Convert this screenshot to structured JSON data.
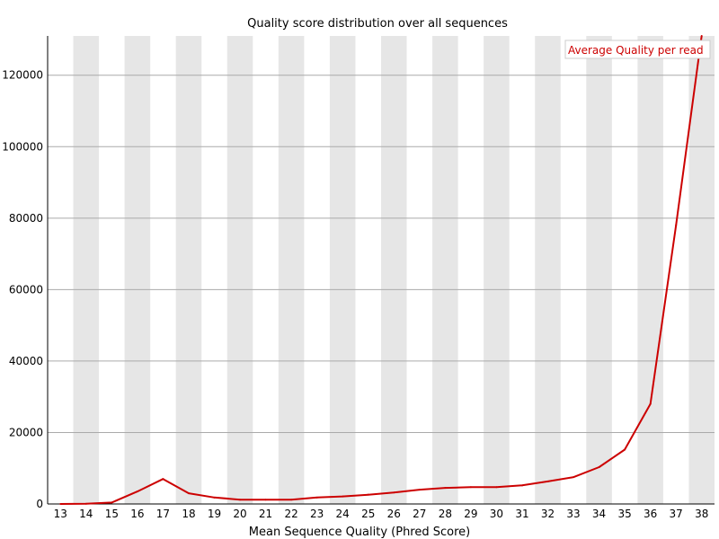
{
  "chart_data": {
    "type": "line",
    "title": "Quality score distribution over all sequences",
    "xlabel": "Mean Sequence Quality (Phred Score)",
    "ylabel": "",
    "x": [
      13,
      14,
      15,
      16,
      17,
      18,
      19,
      20,
      21,
      22,
      23,
      24,
      25,
      26,
      27,
      28,
      29,
      30,
      31,
      32,
      33,
      34,
      35,
      36,
      37,
      38
    ],
    "ylim": [
      0,
      131000
    ],
    "yticks": [
      0,
      20000,
      40000,
      60000,
      80000,
      100000,
      120000
    ],
    "series": [
      {
        "name": "Average Quality per read",
        "color": "#cc0000",
        "values": [
          0,
          50,
          400,
          3500,
          7000,
          3000,
          1800,
          1200,
          1200,
          1200,
          1800,
          2100,
          2600,
          3200,
          4000,
          4500,
          4700,
          4700,
          5200,
          6300,
          7500,
          10300,
          15200,
          28000,
          78000,
          131000
        ]
      }
    ],
    "legend_position": "top-right",
    "stripe_color": "#e6e6e6",
    "grid": true
  }
}
